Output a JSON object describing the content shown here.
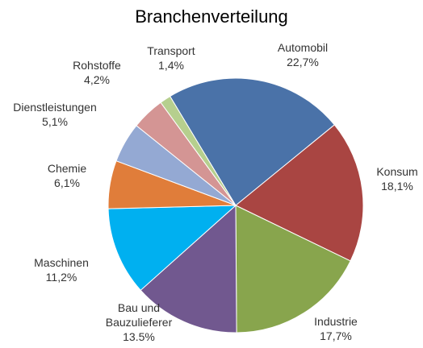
{
  "chart_data": {
    "type": "pie",
    "title": "Branchenverteilung",
    "categories": [
      "Automobil",
      "Konsum",
      "Industrie",
      "Bau und Bauzulieferer",
      "Maschinen",
      "Chemie",
      "Dienstleistungen",
      "Rohstoffe",
      "Transport"
    ],
    "values": [
      22.7,
      18.1,
      17.7,
      13.5,
      11.2,
      6.1,
      5.1,
      4.2,
      1.4
    ],
    "value_labels": [
      "22,7%",
      "18,1%",
      "17,7%",
      "13.5%",
      "11,2%",
      "6,1%",
      "5,1%",
      "4,2%",
      "1,4%"
    ],
    "colors": [
      "#4a72a8",
      "#a94542",
      "#88a54d",
      "#71588f",
      "#00b0f0",
      "#e07d3a",
      "#94a9d3",
      "#d49594",
      "#b6cf8e"
    ]
  }
}
